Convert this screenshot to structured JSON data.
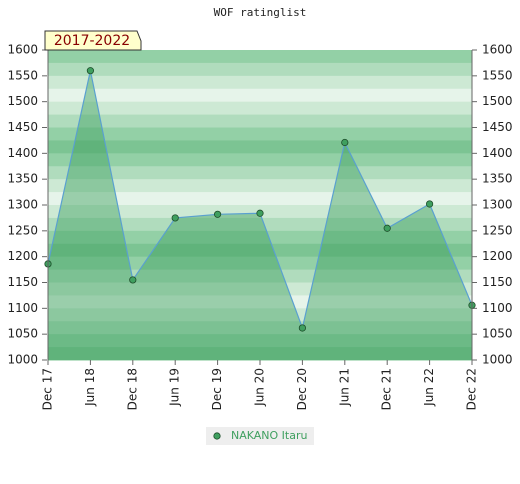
{
  "chart_data": {
    "type": "line",
    "title": "WOF ratinglist",
    "annotation": "2017-2022",
    "categories": [
      "Dec 17",
      "Jun 18",
      "Dec 18",
      "Jun 19",
      "Dec 19",
      "Jun 20",
      "Dec 20",
      "Jun 21",
      "Dec 21",
      "Jun 22",
      "Dec 22"
    ],
    "series": [
      {
        "name": "NAKANO Itaru",
        "color": "#3f9f5f",
        "values": [
          1186,
          1560,
          1155,
          1275,
          1282,
          1284,
          1062,
          1421,
          1255,
          1302,
          1106
        ]
      }
    ],
    "ylim": [
      1000,
      1600
    ],
    "yticks": [
      1000,
      1050,
      1100,
      1150,
      1200,
      1250,
      1300,
      1350,
      1400,
      1450,
      1500,
      1550,
      1600
    ],
    "filled": true
  }
}
